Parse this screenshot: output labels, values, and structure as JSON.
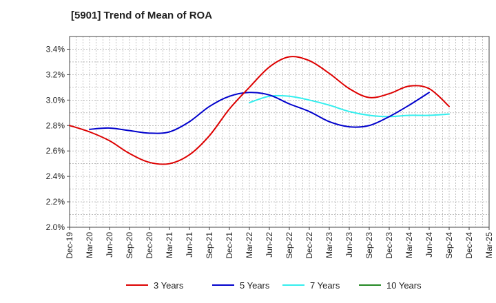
{
  "chart_data": {
    "type": "line",
    "title": "[5901]  Trend of Mean of ROA",
    "xlabel": "",
    "ylabel": "",
    "ylim": [
      2.0,
      3.5
    ],
    "y_ticks": [
      2.0,
      2.2,
      2.4,
      2.6,
      2.8,
      3.0,
      3.2,
      3.4
    ],
    "y_tick_labels": [
      "2.0%",
      "2.2%",
      "2.4%",
      "2.6%",
      "2.8%",
      "3.0%",
      "3.2%",
      "3.4%"
    ],
    "x_tick_labels": [
      "Dec-19",
      "Mar-20",
      "Jun-20",
      "Sep-20",
      "Dec-20",
      "Mar-21",
      "Jun-21",
      "Sep-21",
      "Dec-21",
      "Mar-22",
      "Jun-22",
      "Sep-22",
      "Dec-22",
      "Mar-23",
      "Jun-23",
      "Sep-23",
      "Dec-23",
      "Mar-24",
      "Jun-24",
      "Sep-24",
      "Dec-24",
      "Mar-25"
    ],
    "grid": true,
    "legend_position": "bottom",
    "series": [
      {
        "name": "3 Years",
        "color": "#dd0000",
        "start_index": 0,
        "values": [
          2.8,
          2.75,
          2.68,
          2.58,
          2.51,
          2.5,
          2.57,
          2.72,
          2.93,
          3.1,
          3.26,
          3.34,
          3.31,
          3.21,
          3.09,
          3.02,
          3.05,
          3.11,
          3.09,
          2.95
        ]
      },
      {
        "name": "5 Years",
        "color": "#0000cc",
        "start_index": 1,
        "values": [
          2.77,
          2.78,
          2.76,
          2.74,
          2.75,
          2.83,
          2.95,
          3.03,
          3.06,
          3.04,
          2.97,
          2.91,
          2.83,
          2.79,
          2.8,
          2.87,
          2.96,
          3.06
        ]
      },
      {
        "name": "7 Years",
        "color": "#33eeee",
        "start_index": 9,
        "values": [
          2.98,
          3.03,
          3.03,
          3.0,
          2.96,
          2.91,
          2.88,
          2.87,
          2.88,
          2.88,
          2.89
        ]
      },
      {
        "name": "10 Years",
        "color": "#228822",
        "start_index": 0,
        "values": []
      }
    ]
  }
}
